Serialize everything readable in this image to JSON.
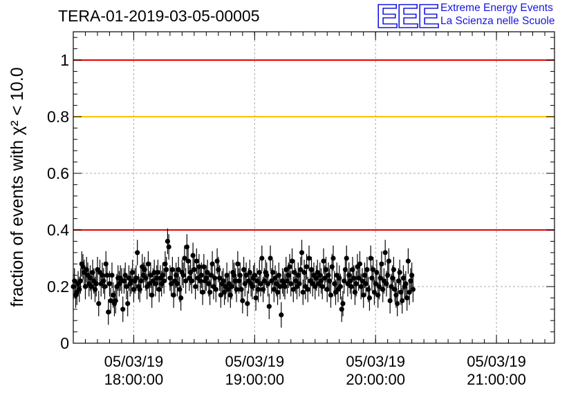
{
  "header": {
    "title": "TERA-01-2019-03-05-00005",
    "logo_letters": "EEE",
    "logo_line1": "Extreme Energy Events",
    "logo_line2": "La Scienza nelle Scuole"
  },
  "colors": {
    "logo": "#1515e0",
    "threshold_low": "#e00000",
    "threshold_mid": "#ffc000",
    "threshold_high": "#e00000",
    "marker": "#000000",
    "grid": "#aaaaaa"
  },
  "chart_data": {
    "type": "scatter",
    "title": "TERA-01-2019-03-05-00005",
    "ylabel": "fraction of events with χ² < 10.0",
    "xlabel": "",
    "ylim": [
      0,
      1.1
    ],
    "xlim_hours": [
      17.5,
      21.48
    ],
    "x_ticks": [
      {
        "value": 18,
        "date": "05/03/19",
        "time": "18:00:00"
      },
      {
        "value": 19,
        "date": "05/03/19",
        "time": "19:00:00"
      },
      {
        "value": 20,
        "date": "05/03/19",
        "time": "20:00:00"
      },
      {
        "value": 21,
        "date": "05/03/19",
        "time": "21:00:00"
      }
    ],
    "y_ticks": [
      {
        "value": 0,
        "label": "0"
      },
      {
        "value": 0.2,
        "label": "0.2"
      },
      {
        "value": 0.4,
        "label": "0.4"
      },
      {
        "value": 0.6,
        "label": "0.6"
      },
      {
        "value": 0.8,
        "label": "0.8"
      },
      {
        "value": 1.0,
        "label": "1"
      }
    ],
    "grid": true,
    "reference_lines": [
      {
        "y": 0.4,
        "color": "#e00000"
      },
      {
        "y": 0.8,
        "color": "#ffc000"
      },
      {
        "y": 1.0,
        "color": "#e00000"
      }
    ],
    "error_bar": 0.045,
    "series": [
      {
        "x_start_hours": 17.5,
        "x_step_hours": 0.01,
        "y": [
          0.2,
          0.22,
          0.17,
          0.18,
          0.21,
          0.19,
          0.22,
          0.28,
          0.27,
          0.25,
          0.2,
          0.26,
          0.24,
          0.21,
          0.23,
          0.2,
          0.25,
          0.22,
          0.19,
          0.21,
          0.26,
          0.14,
          0.25,
          0.21,
          0.24,
          0.22,
          0.2,
          0.28,
          0.24,
          0.11,
          0.21,
          0.15,
          0.24,
          0.17,
          0.14,
          0.15,
          0.2,
          0.23,
          0.21,
          0.23,
          0.22,
          0.12,
          0.22,
          0.24,
          0.2,
          0.14,
          0.23,
          0.21,
          0.22,
          0.25,
          0.19,
          0.22,
          0.23,
          0.32,
          0.2,
          0.19,
          0.22,
          0.27,
          0.24,
          0.26,
          0.23,
          0.2,
          0.28,
          0.21,
          0.24,
          0.17,
          0.22,
          0.25,
          0.21,
          0.23,
          0.25,
          0.19,
          0.23,
          0.21,
          0.24,
          0.22,
          0.28,
          0.26,
          0.36,
          0.34,
          0.23,
          0.21,
          0.26,
          0.17,
          0.22,
          0.24,
          0.21,
          0.26,
          0.19,
          0.16,
          0.25,
          0.24,
          0.3,
          0.22,
          0.34,
          0.29,
          0.23,
          0.25,
          0.22,
          0.31,
          0.26,
          0.2,
          0.29,
          0.23,
          0.27,
          0.22,
          0.24,
          0.18,
          0.27,
          0.22,
          0.23,
          0.25,
          0.21,
          0.18,
          0.24,
          0.28,
          0.2,
          0.23,
          0.19,
          0.29,
          0.26,
          0.23,
          0.17,
          0.21,
          0.22,
          0.18,
          0.2,
          0.24,
          0.19,
          0.21,
          0.17,
          0.2,
          0.25,
          0.24,
          0.22,
          0.19,
          0.28,
          0.22,
          0.24,
          0.19,
          0.15,
          0.26,
          0.21,
          0.24,
          0.14,
          0.22,
          0.25,
          0.21,
          0.2,
          0.23,
          0.24,
          0.16,
          0.22,
          0.19,
          0.25,
          0.21,
          0.3,
          0.19,
          0.22,
          0.25,
          0.24,
          0.21,
          0.13,
          0.3,
          0.22,
          0.25,
          0.19,
          0.23,
          0.21,
          0.18,
          0.24,
          0.2,
          0.1,
          0.22,
          0.21,
          0.2,
          0.26,
          0.22,
          0.24,
          0.27,
          0.21,
          0.29,
          0.19,
          0.25,
          0.22,
          0.2,
          0.24,
          0.21,
          0.26,
          0.32,
          0.18,
          0.25,
          0.2,
          0.27,
          0.19,
          0.3,
          0.22,
          0.26,
          0.21,
          0.24,
          0.2,
          0.23,
          0.25,
          0.21,
          0.24,
          0.22,
          0.2,
          0.29,
          0.23,
          0.26,
          0.19,
          0.24,
          0.22,
          0.17,
          0.27,
          0.3,
          0.21,
          0.18,
          0.24,
          0.19,
          0.23,
          0.2,
          0.12,
          0.14,
          0.22,
          0.26,
          0.3,
          0.21,
          0.24,
          0.22,
          0.2,
          0.26,
          0.23,
          0.18,
          0.21,
          0.27,
          0.23,
          0.28,
          0.2,
          0.22,
          0.17,
          0.24,
          0.21,
          0.26,
          0.19,
          0.16,
          0.3,
          0.23,
          0.26,
          0.18,
          0.21,
          0.25,
          0.17,
          0.2,
          0.23,
          0.28,
          0.19,
          0.22,
          0.32,
          0.21,
          0.24,
          0.29,
          0.15,
          0.2,
          0.23,
          0.26,
          0.19,
          0.17,
          0.14,
          0.22,
          0.25,
          0.18,
          0.15,
          0.23,
          0.2,
          0.21,
          0.16,
          0.29,
          0.18,
          0.22,
          0.24,
          0.19
        ]
      }
    ]
  }
}
